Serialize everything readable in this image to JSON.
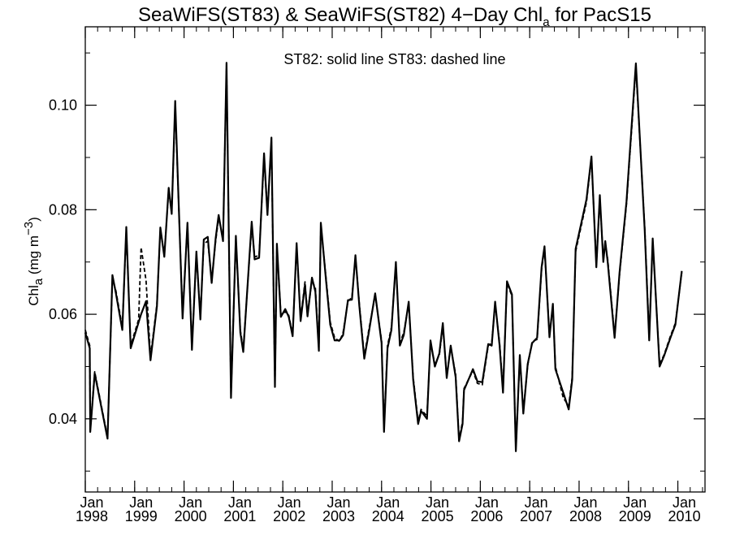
{
  "chart_data": {
    "type": "line",
    "title": {
      "main": "SeaWiFS(ST83) & SeaWiFS(ST82) 4−Day Chl",
      "sub": "a",
      "end": " for PacS15"
    },
    "annotation": "ST82: solid line   ST83: dashed line",
    "ylabel": {
      "main": "Chl",
      "sub": "a",
      "unit_open": " (mg m",
      "sup": "−3",
      "unit_close": ")"
    },
    "xlim": [
      1998.0,
      2010.55
    ],
    "ylim": [
      0.026,
      0.115
    ],
    "grid": false,
    "legend": "none",
    "y_ticks": [
      {
        "value": 0.04,
        "label": "0.04"
      },
      {
        "value": 0.06,
        "label": "0.06"
      },
      {
        "value": 0.08,
        "label": "0.08"
      },
      {
        "value": 0.1,
        "label": "0.10"
      }
    ],
    "y_minor_step": 0.01,
    "x_ticks": [
      {
        "value": 1998,
        "month": "Jan",
        "year": "1998"
      },
      {
        "value": 1999,
        "month": "Jan",
        "year": "1999"
      },
      {
        "value": 2000,
        "month": "Jan",
        "year": "2000"
      },
      {
        "value": 2001,
        "month": "Jan",
        "year": "2001"
      },
      {
        "value": 2002,
        "month": "Jan",
        "year": "2002"
      },
      {
        "value": 2003,
        "month": "Jan",
        "year": "2003"
      },
      {
        "value": 2004,
        "month": "Jan",
        "year": "2004"
      },
      {
        "value": 2005,
        "month": "Jan",
        "year": "2005"
      },
      {
        "value": 2006,
        "month": "Jan",
        "year": "2006"
      },
      {
        "value": 2007,
        "month": "Jan",
        "year": "2007"
      },
      {
        "value": 2008,
        "month": "Jan",
        "year": "2008"
      },
      {
        "value": 2009,
        "month": "Jan",
        "year": "2009"
      },
      {
        "value": 2010,
        "month": "Jan",
        "year": "2010"
      }
    ],
    "x_minor_step": 0.25,
    "series": [
      {
        "name": "ST82",
        "style": "solid",
        "color": "#000000",
        "points": [
          [
            1998.0,
            0.0565
          ],
          [
            1998.09,
            0.0535
          ],
          [
            1998.1,
            0.0375
          ],
          [
            1998.19,
            0.0487
          ],
          [
            1998.45,
            0.0362
          ],
          [
            1998.55,
            0.0675
          ],
          [
            1998.62,
            0.064
          ],
          [
            1998.75,
            0.057
          ],
          [
            1998.83,
            0.0767
          ],
          [
            1998.92,
            0.0535
          ],
          [
            1999.08,
            0.0585
          ],
          [
            1999.13,
            0.06
          ],
          [
            1999.23,
            0.0625
          ],
          [
            1999.32,
            0.0512
          ],
          [
            1999.45,
            0.0615
          ],
          [
            1999.52,
            0.0766
          ],
          [
            1999.6,
            0.071
          ],
          [
            1999.69,
            0.0842
          ],
          [
            1999.75,
            0.0792
          ],
          [
            1999.82,
            0.1008
          ],
          [
            1999.97,
            0.0592
          ],
          [
            2000.07,
            0.0775
          ],
          [
            2000.16,
            0.0532
          ],
          [
            2000.25,
            0.072
          ],
          [
            2000.33,
            0.059
          ],
          [
            2000.4,
            0.0743
          ],
          [
            2000.48,
            0.0748
          ],
          [
            2000.56,
            0.066
          ],
          [
            2000.64,
            0.0745
          ],
          [
            2000.7,
            0.079
          ],
          [
            2000.79,
            0.074
          ],
          [
            2000.86,
            0.1081
          ],
          [
            2000.95,
            0.044
          ],
          [
            2001.05,
            0.075
          ],
          [
            2001.14,
            0.0565
          ],
          [
            2001.2,
            0.0528
          ],
          [
            2001.37,
            0.0777
          ],
          [
            2001.43,
            0.0705
          ],
          [
            2001.52,
            0.0708
          ],
          [
            2001.62,
            0.0908
          ],
          [
            2001.69,
            0.079
          ],
          [
            2001.77,
            0.0938
          ],
          [
            2001.84,
            0.0461
          ],
          [
            2001.88,
            0.0735
          ],
          [
            2001.96,
            0.0595
          ],
          [
            2002.05,
            0.061
          ],
          [
            2002.12,
            0.0595
          ],
          [
            2002.2,
            0.0558
          ],
          [
            2002.28,
            0.0736
          ],
          [
            2002.36,
            0.0587
          ],
          [
            2002.45,
            0.0657
          ],
          [
            2002.5,
            0.0596
          ],
          [
            2002.59,
            0.067
          ],
          [
            2002.66,
            0.0643
          ],
          [
            2002.73,
            0.053
          ],
          [
            2002.77,
            0.0775
          ],
          [
            2002.87,
            0.067
          ],
          [
            2002.96,
            0.058
          ],
          [
            2003.05,
            0.055
          ],
          [
            2003.15,
            0.055
          ],
          [
            2003.22,
            0.056
          ],
          [
            2003.32,
            0.0627
          ],
          [
            2003.4,
            0.0628
          ],
          [
            2003.47,
            0.0713
          ],
          [
            2003.55,
            0.0616
          ],
          [
            2003.65,
            0.0515
          ],
          [
            2003.75,
            0.057
          ],
          [
            2003.87,
            0.064
          ],
          [
            2004.0,
            0.0545
          ],
          [
            2004.05,
            0.0375
          ],
          [
            2004.12,
            0.0535
          ],
          [
            2004.2,
            0.057
          ],
          [
            2004.29,
            0.07
          ],
          [
            2004.37,
            0.054
          ],
          [
            2004.45,
            0.056
          ],
          [
            2004.55,
            0.0624
          ],
          [
            2004.64,
            0.0475
          ],
          [
            2004.74,
            0.039
          ],
          [
            2004.8,
            0.0415
          ],
          [
            2004.92,
            0.04
          ],
          [
            2004.99,
            0.055
          ],
          [
            2005.08,
            0.05
          ],
          [
            2005.17,
            0.0525
          ],
          [
            2005.24,
            0.0583
          ],
          [
            2005.32,
            0.0478
          ],
          [
            2005.4,
            0.054
          ],
          [
            2005.5,
            0.048
          ],
          [
            2005.57,
            0.0357
          ],
          [
            2005.64,
            0.039
          ],
          [
            2005.67,
            0.0455
          ],
          [
            2005.85,
            0.0495
          ],
          [
            2005.94,
            0.0472
          ],
          [
            2006.04,
            0.047
          ],
          [
            2006.16,
            0.0543
          ],
          [
            2006.23,
            0.054
          ],
          [
            2006.3,
            0.0624
          ],
          [
            2006.39,
            0.054
          ],
          [
            2006.46,
            0.045
          ],
          [
            2006.54,
            0.0663
          ],
          [
            2006.64,
            0.0638
          ],
          [
            2006.72,
            0.0338
          ],
          [
            2006.8,
            0.0522
          ],
          [
            2006.87,
            0.041
          ],
          [
            2006.96,
            0.0505
          ],
          [
            2007.05,
            0.0545
          ],
          [
            2007.15,
            0.0555
          ],
          [
            2007.24,
            0.069
          ],
          [
            2007.3,
            0.073
          ],
          [
            2007.4,
            0.0556
          ],
          [
            2007.47,
            0.062
          ],
          [
            2007.52,
            0.0495
          ],
          [
            2007.68,
            0.045
          ],
          [
            2007.79,
            0.0418
          ],
          [
            2007.86,
            0.0475
          ],
          [
            2007.93,
            0.0725
          ],
          [
            2008.15,
            0.082
          ],
          [
            2008.25,
            0.0902
          ],
          [
            2008.35,
            0.069
          ],
          [
            2008.42,
            0.0828
          ],
          [
            2008.49,
            0.07
          ],
          [
            2008.53,
            0.074
          ],
          [
            2008.58,
            0.07
          ],
          [
            2008.72,
            0.0555
          ],
          [
            2008.82,
            0.068
          ],
          [
            2008.96,
            0.0815
          ],
          [
            2009.15,
            0.108
          ],
          [
            2009.33,
            0.076
          ],
          [
            2009.42,
            0.055
          ],
          [
            2009.49,
            0.0745
          ],
          [
            2009.63,
            0.05
          ],
          [
            2009.72,
            0.052
          ],
          [
            2009.85,
            0.0555
          ],
          [
            2009.95,
            0.058
          ],
          [
            2010.08,
            0.0683
          ]
        ]
      },
      {
        "name": "ST83",
        "style": "dashed",
        "color": "#000000",
        "points": [
          [
            1998.0,
            0.057
          ],
          [
            1998.09,
            0.054
          ],
          [
            1998.1,
            0.0378
          ],
          [
            1998.19,
            0.049
          ],
          [
            1998.45,
            0.0365
          ],
          [
            1998.55,
            0.0668
          ],
          [
            1998.62,
            0.0645
          ],
          [
            1998.75,
            0.0575
          ],
          [
            1998.83,
            0.076
          ],
          [
            1998.92,
            0.054
          ],
          [
            1999.08,
            0.059
          ],
          [
            1999.13,
            0.0728
          ],
          [
            1999.23,
            0.0665
          ],
          [
            1999.32,
            0.0518
          ],
          [
            1999.45,
            0.062
          ],
          [
            1999.52,
            0.0762
          ],
          [
            1999.6,
            0.0715
          ],
          [
            1999.69,
            0.0838
          ],
          [
            1999.75,
            0.0795
          ],
          [
            1999.82,
            0.1
          ],
          [
            1999.97,
            0.0598
          ],
          [
            2000.07,
            0.0772
          ],
          [
            2000.16,
            0.0538
          ],
          [
            2000.25,
            0.0715
          ],
          [
            2000.33,
            0.0595
          ],
          [
            2000.4,
            0.0735
          ],
          [
            2000.48,
            0.074
          ],
          [
            2000.56,
            0.0665
          ],
          [
            2000.64,
            0.074
          ],
          [
            2000.7,
            0.0785
          ],
          [
            2000.79,
            0.0745
          ],
          [
            2000.86,
            0.1075
          ],
          [
            2000.95,
            0.0445
          ],
          [
            2001.05,
            0.0745
          ],
          [
            2001.14,
            0.057
          ],
          [
            2001.2,
            0.0532
          ],
          [
            2001.37,
            0.077
          ],
          [
            2001.43,
            0.071
          ],
          [
            2001.52,
            0.0712
          ],
          [
            2001.62,
            0.09
          ],
          [
            2001.69,
            0.0795
          ],
          [
            2001.77,
            0.093
          ],
          [
            2001.84,
            0.0465
          ],
          [
            2001.88,
            0.073
          ],
          [
            2001.96,
            0.06
          ],
          [
            2002.05,
            0.0605
          ],
          [
            2002.12,
            0.0598
          ],
          [
            2002.2,
            0.0562
          ],
          [
            2002.28,
            0.073
          ],
          [
            2002.36,
            0.0592
          ],
          [
            2002.45,
            0.0662
          ],
          [
            2002.5,
            0.06
          ],
          [
            2002.59,
            0.0665
          ],
          [
            2002.66,
            0.065
          ],
          [
            2002.73,
            0.0535
          ],
          [
            2002.77,
            0.077
          ],
          [
            2002.87,
            0.0675
          ],
          [
            2002.96,
            0.0585
          ],
          [
            2003.05,
            0.0555
          ],
          [
            2003.15,
            0.0548
          ],
          [
            2003.22,
            0.0565
          ],
          [
            2003.32,
            0.0625
          ],
          [
            2003.4,
            0.0632
          ],
          [
            2003.47,
            0.071
          ],
          [
            2003.55,
            0.062
          ],
          [
            2003.65,
            0.052
          ],
          [
            2003.75,
            0.0575
          ],
          [
            2003.87,
            0.0636
          ],
          [
            2004.0,
            0.055
          ],
          [
            2004.05,
            0.038
          ],
          [
            2004.12,
            0.054
          ],
          [
            2004.2,
            0.0575
          ],
          [
            2004.29,
            0.0695
          ],
          [
            2004.37,
            0.0545
          ],
          [
            2004.45,
            0.0565
          ],
          [
            2004.55,
            0.062
          ],
          [
            2004.64,
            0.048
          ],
          [
            2004.74,
            0.0395
          ],
          [
            2004.8,
            0.0418
          ],
          [
            2004.92,
            0.0405
          ],
          [
            2004.99,
            0.0545
          ],
          [
            2005.08,
            0.0505
          ],
          [
            2005.17,
            0.0522
          ],
          [
            2005.24,
            0.0578
          ],
          [
            2005.32,
            0.0482
          ],
          [
            2005.4,
            0.0538
          ],
          [
            2005.5,
            0.0485
          ],
          [
            2005.57,
            0.036
          ],
          [
            2005.64,
            0.0395
          ],
          [
            2005.67,
            0.0458
          ],
          [
            2005.85,
            0.0492
          ],
          [
            2005.94,
            0.0468
          ],
          [
            2006.04,
            0.0465
          ],
          [
            2006.16,
            0.054
          ],
          [
            2006.23,
            0.0545
          ],
          [
            2006.3,
            0.062
          ],
          [
            2006.39,
            0.0545
          ],
          [
            2006.46,
            0.0455
          ],
          [
            2006.54,
            0.066
          ],
          [
            2006.64,
            0.0635
          ],
          [
            2006.72,
            0.0342
          ],
          [
            2006.8,
            0.0518
          ],
          [
            2006.87,
            0.0415
          ],
          [
            2006.96,
            0.0502
          ],
          [
            2007.05,
            0.0548
          ],
          [
            2007.15,
            0.0552
          ],
          [
            2007.24,
            0.0686
          ],
          [
            2007.3,
            0.0726
          ],
          [
            2007.4,
            0.056
          ],
          [
            2007.47,
            0.0615
          ],
          [
            2007.52,
            0.05
          ],
          [
            2007.68,
            0.044
          ],
          [
            2007.79,
            0.0425
          ],
          [
            2007.86,
            0.048
          ],
          [
            2007.93,
            0.072
          ],
          [
            2008.15,
            0.0815
          ],
          [
            2008.25,
            0.0898
          ],
          [
            2008.35,
            0.0695
          ],
          [
            2008.42,
            0.0822
          ],
          [
            2008.49,
            0.0705
          ],
          [
            2008.53,
            0.0735
          ],
          [
            2008.58,
            0.0705
          ],
          [
            2008.72,
            0.056
          ],
          [
            2008.82,
            0.0676
          ],
          [
            2008.96,
            0.081
          ],
          [
            2009.15,
            0.1072
          ],
          [
            2009.33,
            0.0765
          ],
          [
            2009.42,
            0.0555
          ],
          [
            2009.49,
            0.074
          ],
          [
            2009.63,
            0.0505
          ],
          [
            2009.72,
            0.0522
          ],
          [
            2009.85,
            0.0558
          ],
          [
            2009.95,
            0.0583
          ],
          [
            2010.08,
            0.068
          ]
        ]
      }
    ]
  }
}
